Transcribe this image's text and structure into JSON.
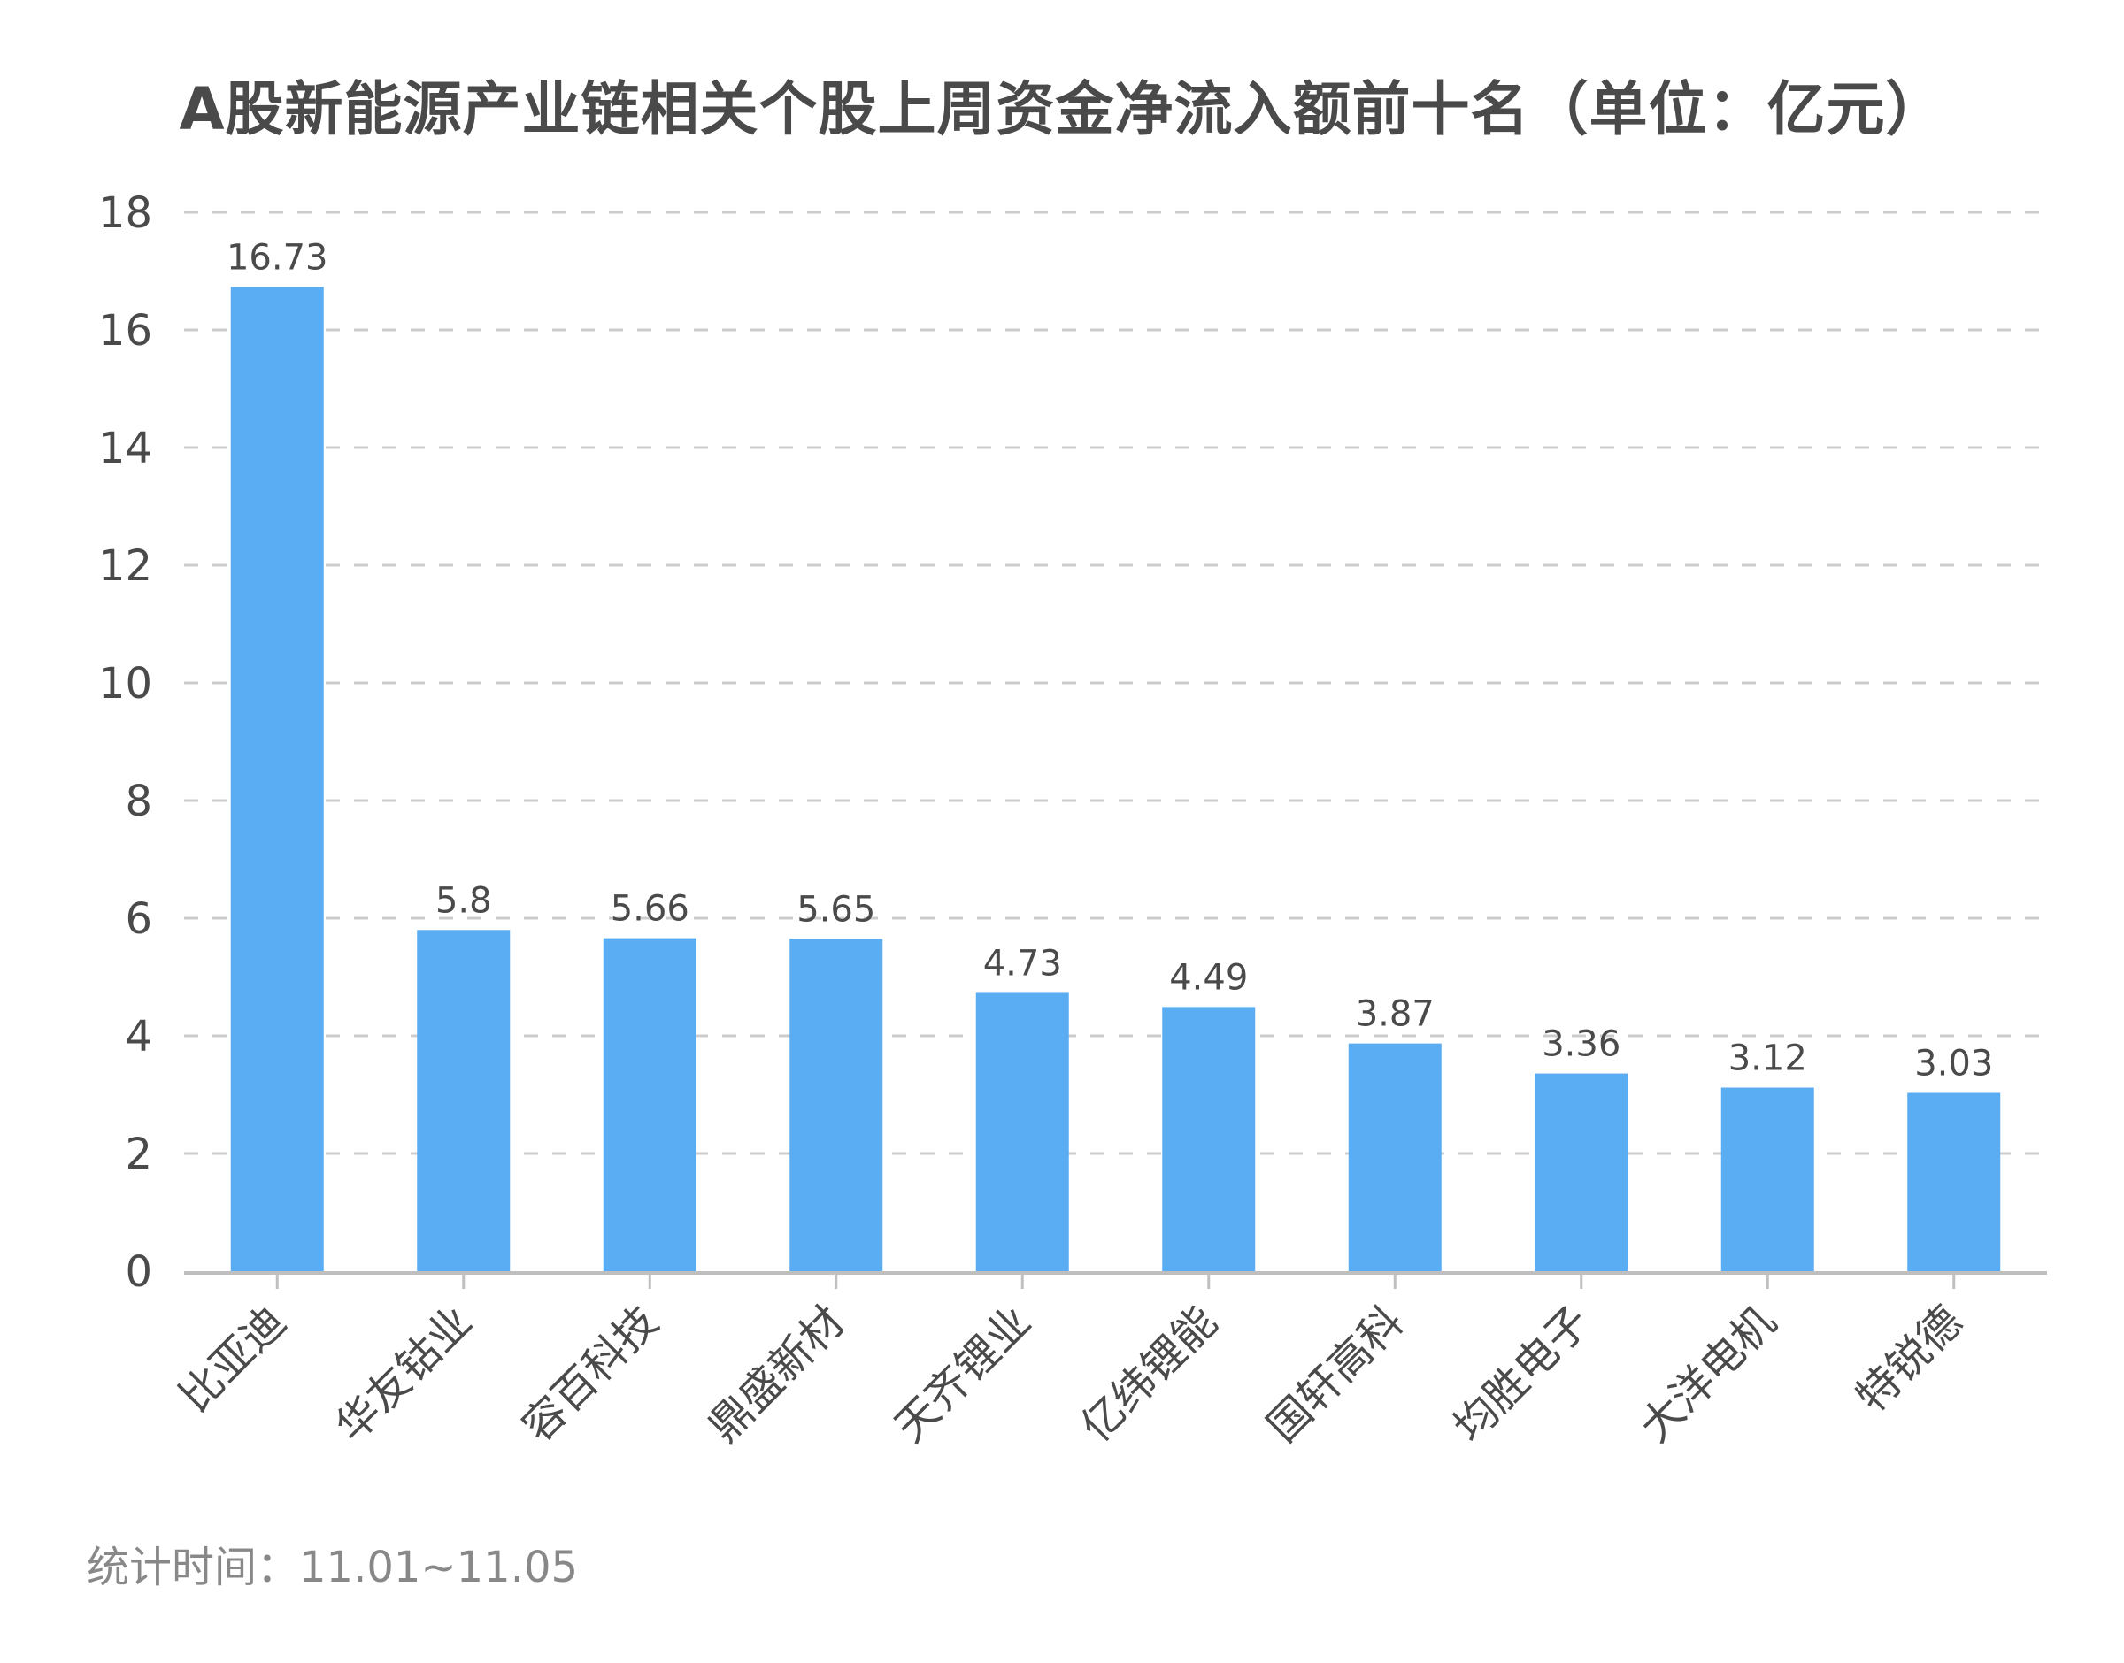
{
  "title": "A股新能源产业链相关个股上周资金净流入额前十名（单位：亿元）",
  "footnote": "统计时间：11.01~11.05",
  "colors": {
    "bar": "#5aacf3",
    "grid": "#cccccc",
    "axis": "#bfbfbf",
    "text": "#4a4a4a",
    "footnote": "#888888"
  },
  "chart_data": {
    "type": "bar",
    "title": "A股新能源产业链相关个股上周资金净流入额前十名（单位：亿元）",
    "xlabel": "",
    "ylabel": "",
    "ylim": [
      0,
      18
    ],
    "yticks": [
      0,
      2,
      4,
      6,
      8,
      10,
      12,
      14,
      16,
      18
    ],
    "grid": true,
    "legend": null,
    "categories": [
      "比亚迪",
      "华友钴业",
      "容百科技",
      "鼎盛新材",
      "天齐锂业",
      "亿纬锂能",
      "国轩高科",
      "均胜电子",
      "大洋电机",
      "特锐德"
    ],
    "values": [
      16.73,
      5.8,
      5.66,
      5.65,
      4.73,
      4.49,
      3.87,
      3.36,
      3.12,
      3.03
    ],
    "value_labels": [
      "16.73",
      "5.8",
      "5.66",
      "5.65",
      "4.73",
      "4.49",
      "3.87",
      "3.36",
      "3.12",
      "3.03"
    ],
    "annotations": [
      "统计时间：11.01~11.05"
    ]
  }
}
